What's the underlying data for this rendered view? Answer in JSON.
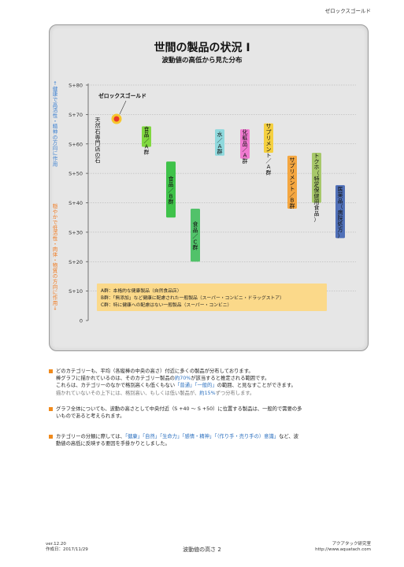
{
  "brand": "ゼロックスゴールド",
  "chart_data": {
    "type": "range-bar",
    "title": "世間の製品の状況 Ⅰ",
    "subtitle": "波動値の高低から見た分布",
    "y_ticks": [
      "0",
      "S+10",
      "S+20",
      "S+30",
      "S+40",
      "S+50",
      "S+60",
      "S+70",
      "S+80"
    ],
    "ylim": [
      0,
      80
    ],
    "ylabel_upper": "↑健康で高活性・精神の方向に作用",
    "ylabel_lower": "穏やかで低活性・肉体・物質の方向に作用↓",
    "highlight": {
      "label": "ゼロックスゴールド",
      "value": 68.5,
      "color": "#e8382a"
    },
    "series": [
      {
        "label": "天然石専門店の石",
        "low": 51,
        "high": 72,
        "color": null
      },
      {
        "label": "食品／A群",
        "low": 59,
        "high": 66,
        "color": "#80d840"
      },
      {
        "label": "食品／B群",
        "low": 35,
        "high": 54,
        "color": "#3fc24a"
      },
      {
        "label": "食品／C群",
        "low": 20,
        "high": 38,
        "color": "#52c26a"
      },
      {
        "label": "水／A群",
        "low": 56,
        "high": 65,
        "color": "#8fd9dd"
      },
      {
        "label": "化粧品／A群",
        "low": 55,
        "high": 65,
        "color": "#f07ad0"
      },
      {
        "label": "サプリメント／A群",
        "low": 57,
        "high": 67,
        "color": "#f5d040"
      },
      {
        "label": "サプリメント／B群",
        "low": 38,
        "high": 56,
        "color": "#f4a640"
      },
      {
        "label": "トクホ（特定保健用食品）",
        "low": 40,
        "high": 57,
        "color": "#a7c86a"
      },
      {
        "label": "医薬品（病院処方）",
        "low": 28,
        "high": 46,
        "color": "#5070b8"
      }
    ],
    "legend": [
      "A群：本格的な健康製品（自然食品店）",
      "B群：「無添加」など健康に配慮された一般製品（スーパー・コンビニ・ドラッグストア）",
      "C群：特に健康への配慮はない一般製品（スーパー・コンビニ）"
    ]
  },
  "bullets": [
    {
      "lines": [
        {
          "text": "どのカテゴリーも、平均（各縦棒の中央の高さ）付近に多くの製品が分布しております。",
          "gray": false
        },
        {
          "text": "棒グラフに描かれているのは、そのカテゴリー製品の約70%が該当すると推定される範囲です。",
          "gray": false
        },
        {
          "text": "これらは、カテゴリーのなかで格別高くも低くもない「普通」「一般的」の範囲、と見なすことができます。",
          "gray": false
        },
        {
          "text": "描かれていないその上下には、格別高い、もしくは低い製品が、約15%ずつ分布します。",
          "gray": true
        }
      ]
    },
    {
      "lines": [
        {
          "text": "グラフ全体についても、波動の高さとして中央付近（S +40 〜 S +50）に位置する製品は、一般的で需要の多",
          "gray": false
        },
        {
          "text": "いものであると考えられます。",
          "gray": false
        }
      ]
    },
    {
      "lines": [
        {
          "text": "カテゴリーの分類に際しては、「健康」「自然」「生命力」「感情・精神」「（作り手・売り手の）意識」など、波",
          "gray": false
        },
        {
          "text": "動値の高低に反映する要因を手掛かりとしました。",
          "gray": false
        }
      ]
    }
  ],
  "footer": {
    "version": "ver.12.20",
    "created": "作成日：2017/11/29",
    "page": "波動値の高さ 2",
    "org": "アクアタック研究室",
    "url": "http://www.aquatach.com"
  },
  "colors": {
    "accent": "#f08a1c",
    "blue_text": "#2a6fbf",
    "label_blue": "#3a7fd0",
    "label_orange": "#f07a20"
  }
}
